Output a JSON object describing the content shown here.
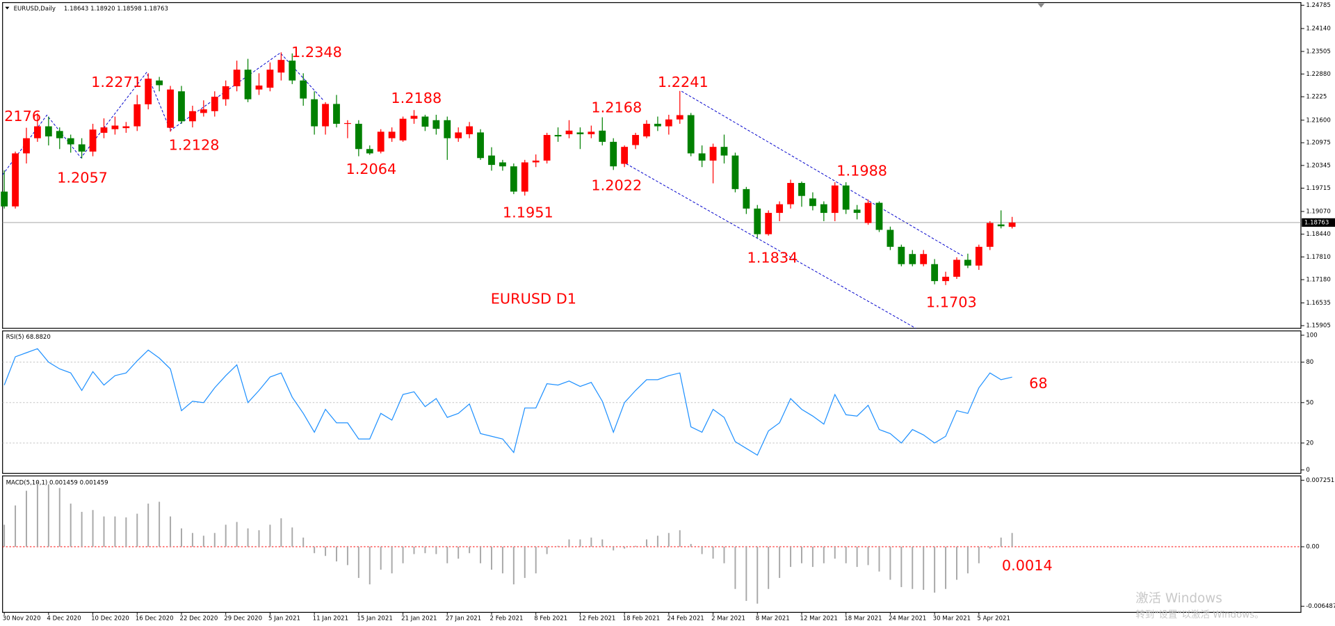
{
  "chart_data": [
    {
      "type": "candlestick",
      "title": "EURUSD,Daily",
      "subtitle": "1.18643 1.18920 1.18598 1.18763",
      "categories": [
        "30 Nov 2020",
        null,
        null,
        null,
        "4 Dec 2020",
        null,
        null,
        null,
        "10 Dec 2020",
        null,
        null,
        null,
        "16 Dec 2020",
        null,
        null,
        null,
        "22 Dec 2020",
        null,
        null,
        null,
        "29 Dec 2020",
        null,
        null,
        null,
        "5 Jan 2021",
        null,
        null,
        null,
        "11 Jan 2021",
        null,
        null,
        null,
        "15 Jan 2021",
        null,
        null,
        null,
        "21 Jan 2021",
        null,
        null,
        null,
        "27 Jan 2021",
        null,
        null,
        null,
        "2 Feb 2021",
        null,
        null,
        null,
        "8 Feb 2021",
        null,
        null,
        null,
        "12 Feb 2021",
        null,
        null,
        null,
        "18 Feb 2021",
        null,
        null,
        null,
        "24 Feb 2021",
        null,
        null,
        null,
        "2 Mar 2021",
        null,
        null,
        null,
        "8 Mar 2021",
        null,
        null,
        null,
        "12 Mar 2021",
        null,
        null,
        null,
        "18 Mar 2021",
        null,
        null,
        null,
        "24 Mar 2021",
        null,
        null,
        null,
        "30 Mar 2021",
        null,
        null,
        null,
        "5 Apr 2021",
        null,
        null,
        null
      ],
      "open": [
        1.1962,
        1.1921,
        1.2068,
        1.211,
        1.2143,
        1.213,
        1.211,
        1.2093,
        1.2073,
        1.2125,
        1.2135,
        1.2138,
        1.2143,
        1.2204,
        1.227,
        1.2139,
        1.224,
        1.2157,
        1.218,
        1.2185,
        1.2218,
        1.2254,
        1.23,
        1.2245,
        1.225,
        1.2292,
        1.2325,
        1.227,
        1.2218,
        1.2143,
        1.2205,
        1.215,
        1.215,
        1.208,
        1.2073,
        1.211,
        1.2104,
        1.2164,
        1.217,
        1.216,
        1.216,
        1.211,
        1.2121,
        1.2126,
        1.2062,
        1.2043,
        1.2032,
        1.1962,
        1.2043,
        1.2048,
        1.2119,
        1.2121,
        1.2126,
        1.2121,
        1.2131,
        1.21,
        1.2039,
        1.2091,
        1.2115,
        1.215,
        1.2143,
        1.2162,
        1.2174,
        1.2068,
        1.2048,
        1.2086,
        1.2062,
        1.1969,
        1.1915,
        1.1844,
        1.1903,
        1.1927,
        1.1986,
        1.1943,
        1.1927,
        1.1903,
        1.1979,
        1.1912,
        1.1875,
        1.1931,
        1.1856,
        1.1809,
        1.1789,
        1.1761,
        1.1761,
        1.1714,
        1.1726,
        1.1773,
        1.1757,
        1.1809,
        1.1871,
        1.18643
      ],
      "high": [
        1.2021,
        1.2073,
        1.2139,
        1.2179,
        1.217,
        1.214,
        1.212,
        1.211,
        1.215,
        1.2165,
        1.217,
        1.2155,
        1.223,
        1.229,
        1.228,
        1.2255,
        1.2255,
        1.22,
        1.2215,
        1.224,
        1.227,
        1.2325,
        1.233,
        1.229,
        1.232,
        1.2348,
        1.2345,
        1.229,
        1.224,
        1.221,
        1.223,
        1.216,
        1.216,
        1.209,
        1.2135,
        1.214,
        1.217,
        1.2188,
        1.2175,
        1.2175,
        1.217,
        1.214,
        1.2155,
        1.2135,
        1.2085,
        1.205,
        1.204,
        1.205,
        1.2065,
        1.2125,
        1.214,
        1.216,
        1.214,
        1.2145,
        1.2168,
        1.211,
        1.209,
        1.2125,
        1.216,
        1.217,
        1.2175,
        1.2241,
        1.218,
        1.209,
        1.2095,
        1.212,
        1.207,
        1.1975,
        1.1925,
        1.191,
        1.1935,
        1.1995,
        1.199,
        1.196,
        1.1935,
        1.1988,
        1.1988,
        1.1925,
        1.194,
        1.1935,
        1.1865,
        1.1815,
        1.18,
        1.18,
        1.1775,
        1.174,
        1.178,
        1.179,
        1.1815,
        1.188,
        1.191,
        1.1892
      ],
      "low": [
        1.1915,
        1.1915,
        1.204,
        1.21,
        1.209,
        1.208,
        1.207,
        1.2054,
        1.206,
        1.211,
        1.212,
        1.2125,
        1.213,
        1.219,
        1.224,
        1.2128,
        1.215,
        1.214,
        1.217,
        1.217,
        1.22,
        1.224,
        1.221,
        1.223,
        1.224,
        1.227,
        1.226,
        1.22,
        1.212,
        1.212,
        1.214,
        1.211,
        1.206,
        1.2064,
        1.2068,
        1.21,
        1.21,
        1.215,
        1.213,
        1.212,
        1.205,
        1.21,
        1.211,
        1.205,
        1.202,
        1.202,
        1.1955,
        1.1951,
        1.203,
        1.204,
        1.21,
        1.211,
        1.208,
        1.211,
        1.209,
        1.2022,
        1.203,
        1.208,
        1.211,
        1.213,
        1.212,
        1.215,
        1.206,
        1.203,
        1.1985,
        1.204,
        1.196,
        1.19,
        1.1834,
        1.184,
        1.188,
        1.1915,
        1.192,
        1.191,
        1.188,
        1.188,
        1.19,
        1.1885,
        1.187,
        1.185,
        1.18,
        1.1755,
        1.1755,
        1.1755,
        1.1705,
        1.1703,
        1.172,
        1.175,
        1.1745,
        1.18,
        1.186,
        1.18598
      ],
      "close": [
        1.1921,
        1.2068,
        1.211,
        1.2143,
        1.2115,
        1.211,
        1.2093,
        1.2073,
        1.2134,
        1.214,
        1.2145,
        1.2143,
        1.2204,
        1.2275,
        1.2257,
        1.2245,
        1.2157,
        1.2185,
        1.219,
        1.2225,
        1.2254,
        1.23,
        1.2218,
        1.2256,
        1.23,
        1.2327,
        1.227,
        1.222,
        1.2143,
        1.2205,
        1.215,
        1.2152,
        1.208,
        1.2068,
        1.2128,
        1.2128,
        1.2164,
        1.2172,
        1.2142,
        1.2136,
        1.211,
        1.2126,
        1.2143,
        1.2055,
        1.2036,
        1.2032,
        1.1962,
        1.2043,
        1.2048,
        1.2119,
        1.2115,
        1.2131,
        1.2121,
        1.2128,
        1.21,
        1.2032,
        1.2086,
        1.2119,
        1.215,
        1.2143,
        1.2162,
        1.2174,
        1.2068,
        1.2048,
        1.2086,
        1.2062,
        1.1969,
        1.1915,
        1.1844,
        1.1903,
        1.1927,
        1.1986,
        1.195,
        1.1922,
        1.1903,
        1.1979,
        1.1912,
        1.1903,
        1.1931,
        1.1856,
        1.1809,
        1.1761,
        1.1761,
        1.1789,
        1.1714,
        1.1726,
        1.1773,
        1.1757,
        1.1809,
        1.1875,
        1.1866,
        1.18763
      ],
      "up_color": "#ff0000",
      "down_color": "#008000",
      "last_price": 1.18763,
      "ylim": [
        1.1583,
        1.2486
      ],
      "yticks": [
        1.24785,
        {
          "value": 1.2414,
          "label": "1.24140"
        },
        1.23505,
        {
          "value": 1.2288,
          "label": "1.22880"
        },
        1.2225,
        {
          "value": 1.216,
          "label": "1.21600"
        },
        1.20975,
        1.20345,
        1.19715,
        {
          "value": 1.1907,
          "label": "1.19070"
        },
        {
          "value": 1.1844,
          "label": "1.18440"
        },
        {
          "value": 1.1781,
          "label": "1.17810"
        },
        {
          "value": 1.1718,
          "label": "1.17180"
        },
        1.16535,
        1.15905
      ],
      "annotations": [
        "2176",
        "1.2057",
        "1.2271",
        "1.2128",
        "1.2348",
        "1.2064",
        "1.2188",
        "1.1951",
        "1.2168",
        "1.2022",
        "1.2241",
        "1.1834",
        "1.1988",
        "1.1703",
        "EURUSD D1"
      ]
    },
    {
      "type": "line",
      "title": "RSI(5) 68.8820",
      "color": "#1e90ff",
      "values": [
        63,
        84,
        87,
        90,
        80,
        75,
        72,
        59,
        73,
        63,
        70,
        72,
        81,
        89,
        83,
        75,
        44,
        51,
        50,
        61,
        70,
        78,
        50,
        59,
        69,
        72,
        54,
        42,
        28,
        45,
        35,
        35,
        23,
        23,
        42,
        37,
        56,
        58,
        47,
        53,
        39,
        42,
        49,
        27,
        25,
        23,
        13,
        46,
        46,
        64,
        63,
        66,
        62,
        65,
        51,
        28,
        50,
        59,
        67,
        67,
        70,
        72,
        32,
        28,
        45,
        39,
        21,
        16,
        11,
        29,
        35,
        53,
        45,
        40,
        34,
        56,
        41,
        40,
        48,
        30,
        27,
        20,
        30,
        26,
        20,
        25,
        44,
        42,
        61,
        72,
        67,
        68.9
      ],
      "ylim": [
        -2.5,
        103.2
      ],
      "yticks": [
        100,
        80,
        50,
        20,
        0
      ],
      "levels": [
        80,
        50,
        20
      ],
      "annotations": [
        "68"
      ]
    },
    {
      "type": "bar",
      "title": "MACD(5,10,1) 0.001459 0.001459",
      "color": "#a8a8a8",
      "zero_line_color": "#ff0000",
      "values": [
        0.0024,
        0.0045,
        0.0061,
        0.0071,
        0.0068,
        0.0064,
        0.0047,
        0.0038,
        0.004,
        0.0033,
        0.0033,
        0.0032,
        0.0036,
        0.0047,
        0.0049,
        0.0033,
        0.002,
        0.0015,
        0.0012,
        0.0015,
        0.0024,
        0.0027,
        0.002,
        0.0018,
        0.0024,
        0.0031,
        0.0021,
        0.001,
        -0.0007,
        -0.001,
        -0.0016,
        -0.002,
        -0.0034,
        -0.0041,
        -0.0025,
        -0.0029,
        -0.0018,
        -0.0008,
        -0.0007,
        -0.0008,
        -0.0018,
        -0.0013,
        -0.0007,
        -0.0018,
        -0.0025,
        -0.0029,
        -0.0041,
        -0.0034,
        -0.0029,
        -0.0008,
        0.0001,
        0.0008,
        0.0008,
        0.001,
        0.0008,
        -0.0004,
        -0.0002,
        0.0001,
        0.0008,
        0.0012,
        0.0015,
        0.0018,
        0.0003,
        -0.0008,
        -0.0013,
        -0.0018,
        -0.0046,
        -0.0059,
        -0.0062,
        -0.0046,
        -0.0034,
        -0.0022,
        -0.0018,
        -0.0022,
        -0.0018,
        -0.0013,
        -0.0018,
        -0.0022,
        -0.002,
        -0.0027,
        -0.0036,
        -0.0044,
        -0.0046,
        -0.0047,
        -0.005,
        -0.0046,
        -0.0036,
        -0.0029,
        -0.0018,
        -0.0002,
        0.001,
        0.0015
      ],
      "ylim": [
        -0.00715,
        0.00772
      ],
      "yticks": [
        0.007251,
        {
          "value": 0,
          "label": "0.00"
        },
        -0.006487
      ],
      "annotations": [
        "0.0014"
      ]
    }
  ],
  "watermark": {
    "line1": "激活 Windows",
    "line2": "转到\"设置\"以激活 Windows。"
  }
}
